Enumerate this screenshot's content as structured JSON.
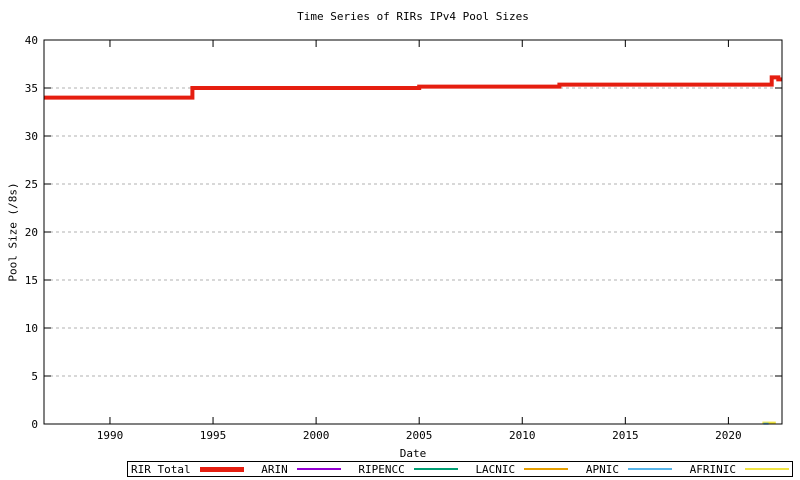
{
  "title": "Time Series of RIRs IPv4 Pool Sizes",
  "chart_data": {
    "type": "line",
    "subtype": "step-time-series",
    "title": "Time Series of RIRs IPv4 Pool Sizes",
    "xlabel": "Date",
    "ylabel": "Pool Size (/8s)",
    "xlim": [
      1986.8,
      2022.6
    ],
    "ylim": [
      0,
      40
    ],
    "xticks": [
      1990,
      1995,
      2000,
      2005,
      2010,
      2015,
      2020
    ],
    "yticks": [
      0,
      5,
      10,
      15,
      20,
      25,
      30,
      35,
      40
    ],
    "grid": "horizontal-dashed",
    "legend_position": "bottom-outside",
    "series": [
      {
        "name": "RIR Total",
        "color": "#e51e10",
        "line_width": 4,
        "points": [
          [
            1986.8,
            34
          ],
          [
            1994.0,
            34
          ],
          [
            1994.0,
            35
          ],
          [
            2005.0,
            35
          ],
          [
            2005.0,
            35.15
          ],
          [
            2011.8,
            35.15
          ],
          [
            2011.8,
            35.35
          ],
          [
            2022.1,
            35.35
          ],
          [
            2022.1,
            36.1
          ],
          [
            2022.42,
            36.1
          ],
          [
            2022.42,
            35.9
          ],
          [
            2022.6,
            35.9
          ]
        ]
      },
      {
        "name": "ARIN",
        "color": "#9400d3",
        "line_width": 2,
        "points": []
      },
      {
        "name": "RIPENCC",
        "color": "#009e73",
        "line_width": 2,
        "points": []
      },
      {
        "name": "LACNIC",
        "color": "#e69f00",
        "line_width": 2,
        "points": []
      },
      {
        "name": "APNIC",
        "color": "#56b4e9",
        "line_width": 2,
        "points": [
          [
            2021.7,
            0.03
          ],
          [
            2021.95,
            0.03
          ]
        ]
      },
      {
        "name": "AFRINIC",
        "color": "#f0e442",
        "line_width": 2,
        "points": [
          [
            2021.65,
            0.15
          ],
          [
            2022.3,
            0.15
          ]
        ]
      }
    ]
  },
  "legend": {
    "entries": [
      {
        "label": "RIR Total",
        "color": "#e51e10",
        "sample_height": 5
      },
      {
        "label": "ARIN",
        "color": "#9400d3",
        "sample_height": 2
      },
      {
        "label": "RIPENCC",
        "color": "#009e73",
        "sample_height": 2
      },
      {
        "label": "LACNIC",
        "color": "#e69f00",
        "sample_height": 2
      },
      {
        "label": "APNIC",
        "color": "#56b4e9",
        "sample_height": 2
      },
      {
        "label": "AFRINIC",
        "color": "#f0e442",
        "sample_height": 2
      }
    ]
  },
  "colors": {
    "background": "#ffffff",
    "axis": "#000000",
    "grid": "#b0b0b0",
    "text": "#000000"
  }
}
